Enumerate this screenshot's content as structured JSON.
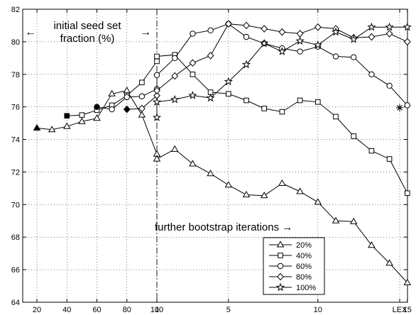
{
  "chart_data": {
    "type": "line",
    "x_axis": {
      "segments": [
        {
          "name": "initial seed set fraction",
          "range": [
            20,
            100
          ],
          "ticks": [
            "20",
            "40",
            "60",
            "80",
            "100"
          ]
        },
        {
          "name": "bootstrap iterations",
          "range": [
            1,
            15
          ],
          "ticks": [
            "1",
            "5",
            "10",
            "15"
          ]
        },
        {
          "name": "LEX",
          "ticks": [
            "LEX"
          ]
        }
      ]
    },
    "y_axis": {
      "ylim": [
        64,
        82
      ],
      "ticks": [
        "64",
        "66",
        "68",
        "70",
        "72",
        "74",
        "76",
        "78",
        "80",
        "82"
      ]
    },
    "grid": true,
    "legend_position": "bottom-right",
    "annotations": [
      {
        "id": "seed-label-line1",
        "text": "initial seed set"
      },
      {
        "id": "seed-label-line2",
        "text": "fraction (%)"
      },
      {
        "id": "left-arrow",
        "text": "←"
      },
      {
        "id": "right-arrow",
        "text": "→"
      },
      {
        "id": "bootstrap-label",
        "text": "further bootstrap iterations →"
      }
    ],
    "seed_points": [
      {
        "x": 20,
        "y": 74.7,
        "marker": "filled-triangle"
      },
      {
        "x": 40,
        "y": 75.45,
        "marker": "filled-square"
      },
      {
        "x": 60,
        "y": 76.0,
        "marker": "filled-circle"
      },
      {
        "x": 80,
        "y": 75.85,
        "marker": "filled-diamond"
      },
      {
        "x": 100,
        "y": 75.35,
        "marker": "star"
      }
    ],
    "lex_point": {
      "y": 75.95,
      "marker": "asterisk"
    },
    "series": [
      {
        "name": "20%",
        "marker": "triangle",
        "seed": {
          "x": [
            20,
            30,
            40,
            50,
            60,
            70,
            80,
            90,
            100
          ],
          "y": [
            74.7,
            74.6,
            74.8,
            75.1,
            75.3,
            76.8,
            77.0,
            75.5,
            73.1
          ]
        },
        "bootstrap": {
          "x": [
            1,
            2,
            3,
            4,
            5,
            6,
            7,
            8,
            9,
            10,
            11,
            12,
            13,
            14,
            15
          ],
          "y": [
            72.8,
            73.4,
            72.5,
            71.9,
            71.2,
            70.6,
            70.55,
            71.3,
            70.8,
            70.15,
            69.0,
            68.95,
            67.5,
            66.4,
            65.2
          ]
        }
      },
      {
        "name": "40%",
        "marker": "square",
        "seed": {
          "x": [
            40,
            50,
            60,
            70,
            80,
            90,
            100
          ],
          "y": [
            75.45,
            75.5,
            75.8,
            76.1,
            76.7,
            77.5,
            78.8
          ]
        },
        "bootstrap": {
          "x": [
            1,
            2,
            3,
            4,
            5,
            6,
            7,
            8,
            9,
            10,
            11,
            12,
            13,
            14,
            15
          ],
          "y": [
            79.1,
            79.2,
            78.0,
            76.9,
            76.8,
            76.4,
            75.9,
            75.7,
            76.4,
            76.3,
            75.4,
            74.2,
            73.3,
            72.8,
            70.7
          ]
        }
      },
      {
        "name": "60%",
        "marker": "circle",
        "seed": {
          "x": [
            60,
            70,
            80,
            90,
            100
          ],
          "y": [
            76.0,
            75.85,
            76.6,
            76.65,
            77.1
          ]
        },
        "bootstrap": {
          "x": [
            1,
            2,
            3,
            4,
            5,
            6,
            7,
            8,
            9,
            10,
            11,
            12,
            13,
            14,
            15
          ],
          "y": [
            77.95,
            79.0,
            80.5,
            80.7,
            81.1,
            80.3,
            79.9,
            79.6,
            79.4,
            79.7,
            79.1,
            79.05,
            78.0,
            77.3,
            76.1
          ]
        }
      },
      {
        "name": "80%",
        "marker": "diamond",
        "seed": {
          "x": [
            80,
            90,
            100
          ],
          "y": [
            75.85,
            75.9,
            76.7
          ]
        },
        "bootstrap": {
          "x": [
            1,
            2,
            3,
            4,
            5,
            6,
            7,
            8,
            9,
            10,
            11,
            12,
            13,
            14,
            15
          ],
          "y": [
            77.0,
            77.9,
            78.7,
            79.15,
            81.1,
            81.0,
            80.8,
            80.6,
            80.5,
            80.9,
            80.8,
            80.25,
            80.3,
            80.5,
            80.0
          ]
        }
      },
      {
        "name": "100%",
        "marker": "star",
        "seed": {
          "x": [
            100
          ],
          "y": [
            75.35
          ]
        },
        "bootstrap": {
          "x": [
            1,
            2,
            3,
            4,
            5,
            6,
            7,
            8,
            9,
            10,
            11,
            12,
            13,
            14,
            15
          ],
          "y": [
            76.3,
            76.45,
            76.7,
            76.55,
            77.55,
            78.6,
            79.9,
            79.4,
            80.05,
            79.8,
            80.6,
            80.15,
            80.9,
            80.9,
            80.9
          ]
        }
      }
    ]
  }
}
